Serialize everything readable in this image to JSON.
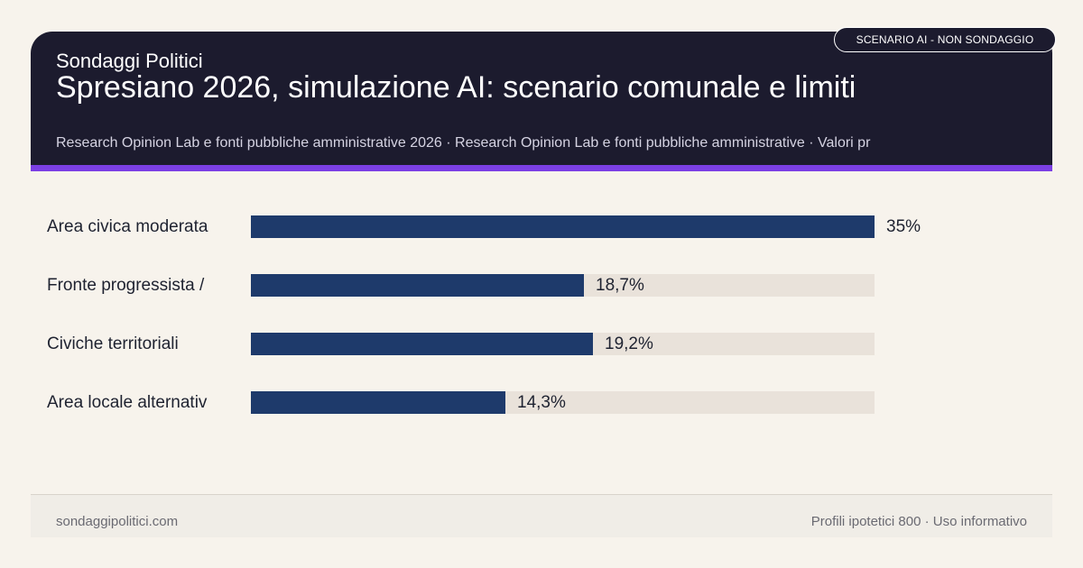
{
  "header": {
    "brand": "Sondaggi Politici",
    "title": "Spresiano 2026, simulazione AI: scenario comunale e limiti",
    "subtitle": "Research Opinion Lab e fonti pubbliche amministrative 2026 · Research Opinion Lab e fonti pubbliche amministrative · Valori pr",
    "badge": "SCENARIO AI - NON SONDAGGIO"
  },
  "colors": {
    "header_bg": "#1c1b2e",
    "accent": "#7b3fe4",
    "bar": "#1e3a6b",
    "track": "#e9e2da",
    "background": "#f7f3ec"
  },
  "chart_data": {
    "type": "bar",
    "orientation": "horizontal",
    "categories": [
      "Area civica moderata",
      "Fronte progressista /",
      "Civiche territoriali",
      "Area locale alternativ"
    ],
    "values": [
      35,
      18.7,
      19.2,
      14.3
    ],
    "value_labels": [
      "35%",
      "18,7%",
      "19,2%",
      "14,3%"
    ],
    "xlim": [
      0,
      35
    ],
    "grid": false
  },
  "footer": {
    "left": "sondaggipolitici.com",
    "right": "Profili ipotetici 800 · Uso informativo"
  }
}
